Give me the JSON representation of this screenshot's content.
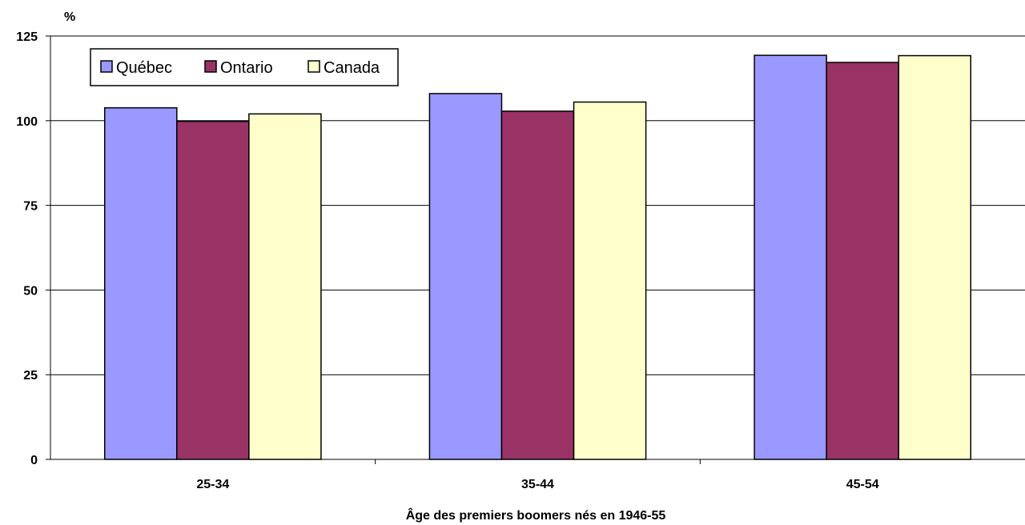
{
  "chart_data": {
    "type": "bar",
    "ylabel": "%",
    "xlabel": "Âge des premiers boomers nés en 1946-55",
    "categories": [
      "25-34",
      "35-44",
      "45-54"
    ],
    "series": [
      {
        "name": "Québec",
        "color": "#9999ff",
        "values": [
          103.8,
          108.0,
          119.3
        ]
      },
      {
        "name": "Ontario",
        "color": "#993366",
        "values": [
          99.8,
          102.8,
          117.2
        ]
      },
      {
        "name": "Canada",
        "color": "#ffffcc",
        "values": [
          102.0,
          105.5,
          119.2
        ]
      }
    ],
    "ylim": [
      0,
      125
    ],
    "yticks": [
      0,
      25,
      50,
      75,
      100,
      125
    ],
    "grid": true,
    "legend_position": "top-left"
  }
}
